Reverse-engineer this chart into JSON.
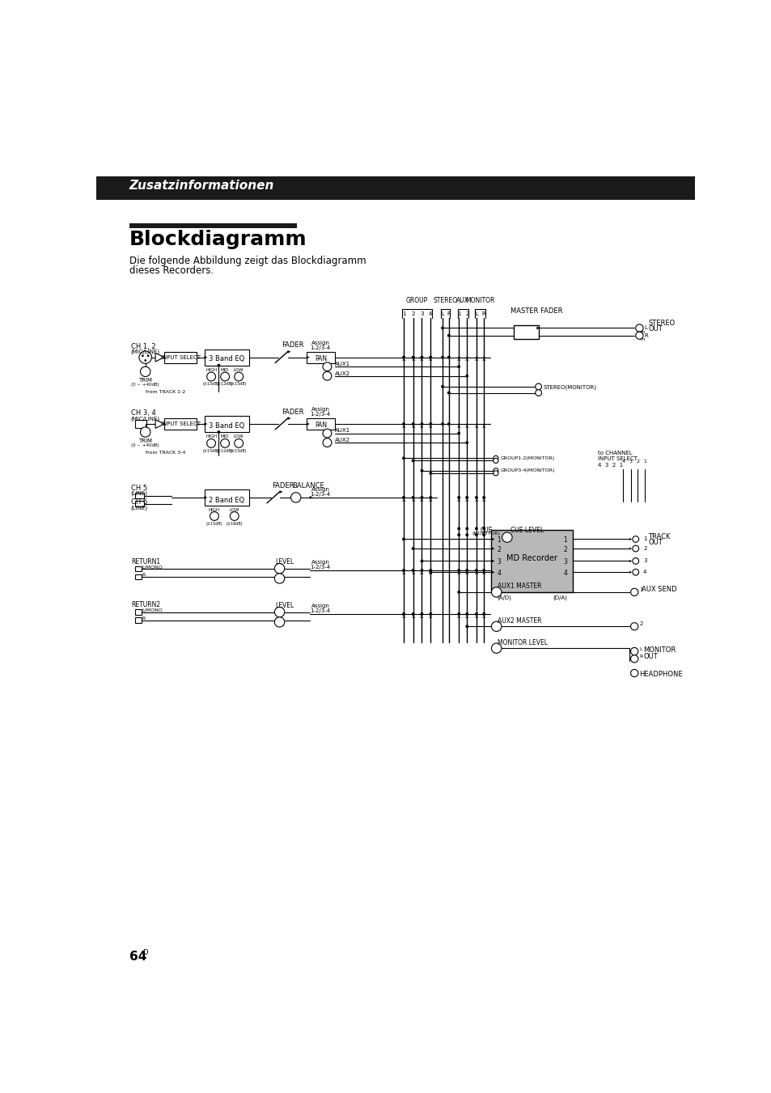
{
  "page_bg": "#ffffff",
  "header_bg": "#1a1a1a",
  "header_text": "Zusatzinformationen",
  "header_text_color": "#ffffff",
  "section_bar_color": "#1a1a1a",
  "title_text": "Blockdiagramm",
  "subtitle_line1": "Die folgende Abbildung zeigt das Blockdiagramm",
  "subtitle_line2": "dieses Recorders.",
  "page_number": "64",
  "page_number_superscript": "D"
}
